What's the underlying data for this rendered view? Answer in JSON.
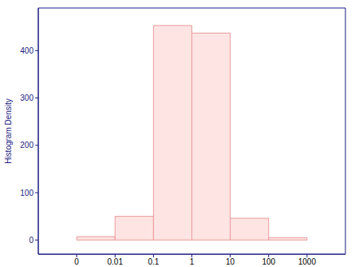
{
  "chart_data": {
    "type": "histogram",
    "bins": [
      0.001,
      0.01,
      0.1,
      1,
      10,
      100,
      1000
    ],
    "values": [
      7,
      50,
      453,
      437,
      46,
      5
    ],
    "y_label": "Histogram Density",
    "log": "x",
    "xlim": [
      0.0001,
      10000
    ],
    "xticks": [
      {
        "value": 0.001,
        "label": "0"
      },
      0.01,
      0.1,
      1,
      10,
      100,
      1000
    ],
    "ylim": [
      -30,
      490
    ],
    "yticks": [
      0,
      100,
      200,
      300,
      400
    ],
    "color": "#ffe4e4",
    "grid": false
  }
}
